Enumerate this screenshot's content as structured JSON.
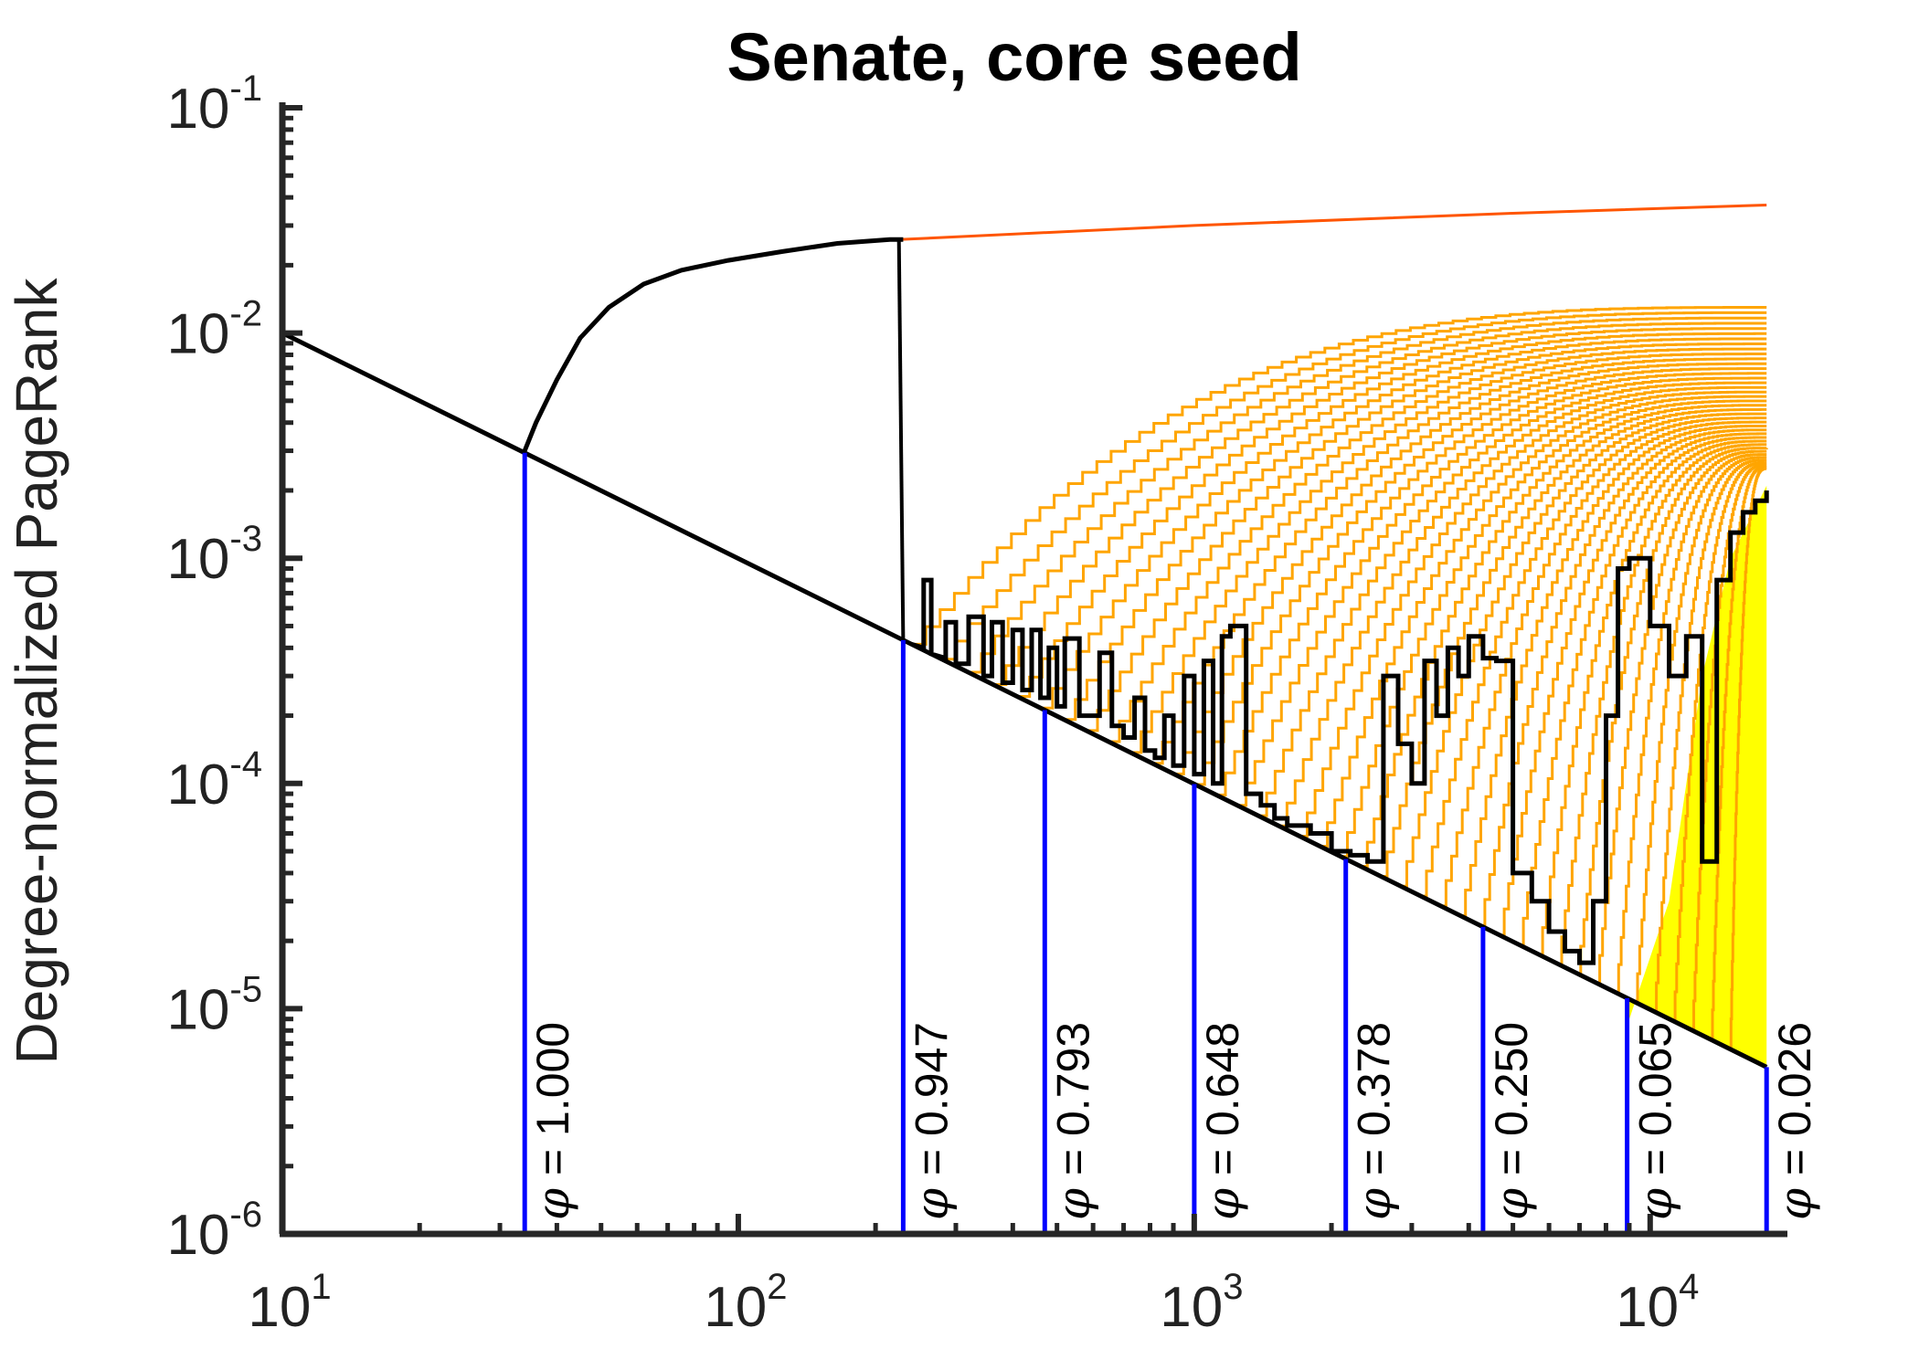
{
  "chart_data": {
    "type": "line",
    "title": "Senate, core seed",
    "xlabel": "",
    "ylabel": "Degree-normalized PageRank",
    "xscale": "log",
    "yscale": "log",
    "xlim": [
      10,
      20000
    ],
    "ylim": [
      1e-06,
      0.1
    ],
    "grid": false,
    "legend": "none",
    "x_ticks": [
      {
        "base": "10",
        "exp": "1",
        "value": 10
      },
      {
        "base": "10",
        "exp": "2",
        "value": 100
      },
      {
        "base": "10",
        "exp": "3",
        "value": 1000
      },
      {
        "base": "10",
        "exp": "4",
        "value": 10000
      }
    ],
    "y_ticks": [
      {
        "base": "10",
        "exp": "-1",
        "value": 0.1
      },
      {
        "base": "10",
        "exp": "-2",
        "value": 0.01
      },
      {
        "base": "10",
        "exp": "-3",
        "value": 0.001
      },
      {
        "base": "10",
        "exp": "-4",
        "value": 0.0001
      },
      {
        "base": "10",
        "exp": "-5",
        "value": 1e-05
      },
      {
        "base": "10",
        "exp": "-6",
        "value": 1e-06
      }
    ],
    "boundary_line": {
      "color": "#000000",
      "x": [
        10,
        18000
      ],
      "y": [
        0.01,
        5.5e-06
      ]
    },
    "core_curve": {
      "color": "#000000",
      "x": [
        34,
        36,
        40,
        45,
        52,
        62,
        75,
        95,
        125,
        165,
        215,
        225,
        230
      ],
      "y": [
        0.003,
        0.004,
        0.0062,
        0.0095,
        0.013,
        0.0165,
        0.019,
        0.021,
        0.023,
        0.025,
        0.026,
        0.026,
        0.026
      ]
    },
    "drop_line": {
      "color": "#000000",
      "x": [
        225,
        230
      ],
      "y": [
        0.026,
        0.00042
      ]
    },
    "top_series": {
      "color": "#ff5500",
      "x": [
        225,
        1000,
        5000,
        18000
      ],
      "y": [
        0.026,
        0.03,
        0.034,
        0.037
      ]
    },
    "orange_series": {
      "color": "#ffa500",
      "count": 40,
      "x_end": 18000,
      "x_start_range": [
        240,
        15000
      ],
      "y_end_range": [
        0.0025,
        0.013
      ]
    },
    "yellow_fill": {
      "color": "#ffff00",
      "x": [
        9000,
        11000,
        13000,
        15000,
        18000
      ],
      "y": [
        9e-06,
        3e-05,
        0.0003,
        0.001,
        0.0021
      ]
    },
    "black_series": {
      "color": "#000000",
      "x": [
        240,
        255,
        265,
        285,
        300,
        320,
        345,
        360,
        380,
        400,
        420,
        440,
        460,
        480,
        500,
        520,
        560,
        620,
        660,
        700,
        740,
        780,
        820,
        860,
        900,
        950,
        1000,
        1050,
        1100,
        1150,
        1200,
        1300,
        1400,
        1500,
        1600,
        1800,
        2000,
        2200,
        2400,
        2600,
        2800,
        3000,
        3200,
        3400,
        3600,
        3800,
        4000,
        4300,
        4600,
        5000,
        5500,
        6000,
        6500,
        7000,
        7500,
        8000,
        8500,
        9000,
        10000,
        11000,
        12000,
        13000,
        14000,
        15000,
        16000,
        17000,
        18000
      ],
      "y": [
        0.0004,
        0.0008,
        0.00036,
        0.00052,
        0.00034,
        0.00055,
        0.0003,
        0.00052,
        0.00028,
        0.00048,
        0.00026,
        0.00048,
        0.00024,
        0.0004,
        0.00022,
        0.00044,
        0.0002,
        0.00038,
        0.00018,
        0.00016,
        0.00024,
        0.00014,
        0.00013,
        0.0002,
        0.00012,
        0.0003,
        0.00011,
        0.00035,
        0.0001,
        0.00045,
        0.0005,
        9e-05,
        8e-05,
        7e-05,
        6.5e-05,
        6e-05,
        5e-05,
        4.8e-05,
        4.5e-05,
        0.0003,
        0.00015,
        0.0001,
        0.00035,
        0.0002,
        0.0004,
        0.0003,
        0.00045,
        0.00036,
        0.00035,
        4e-05,
        3e-05,
        2.2e-05,
        1.8e-05,
        1.6e-05,
        3e-05,
        0.0002,
        0.0009,
        0.001,
        0.0005,
        0.0003,
        0.00045,
        4.5e-05,
        0.0008,
        0.0013,
        0.0016,
        0.0018,
        0.002
      ]
    },
    "cut_lines": {
      "color": "#0000ff",
      "items": [
        {
          "x": 34,
          "phi": "1.000"
        },
        {
          "x": 230,
          "phi": "0.947"
        },
        {
          "x": 470,
          "phi": "0.793"
        },
        {
          "x": 1000,
          "phi": "0.648"
        },
        {
          "x": 2150,
          "phi": "0.378"
        },
        {
          "x": 4300,
          "phi": "0.250"
        },
        {
          "x": 8900,
          "phi": "0.065"
        },
        {
          "x": 18000,
          "phi": "0.026"
        }
      ]
    },
    "phi_prefix": "= ",
    "phi_symbol": "φ"
  }
}
